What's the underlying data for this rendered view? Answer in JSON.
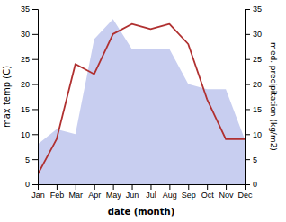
{
  "chart_data": {
    "type": "line",
    "categories": [
      "Jan",
      "Feb",
      "Mar",
      "Apr",
      "May",
      "Jun",
      "Jul",
      "Aug",
      "Sep",
      "Oct",
      "Nov",
      "Dec"
    ],
    "xlabel": "date (month)",
    "ylabel": "max temp (C)",
    "y2label": "med. precipitation (kg/m2)",
    "series": [
      {
        "type": "area",
        "axis": "y2",
        "color": "#c8cef0",
        "values": [
          8,
          11,
          10,
          29,
          33,
          27,
          27,
          27,
          20,
          19,
          19,
          9
        ]
      },
      {
        "type": "line",
        "color": "#b03030",
        "values": [
          2,
          9,
          24,
          22,
          30,
          32,
          31,
          32,
          28,
          17,
          9,
          9
        ]
      }
    ],
    "ylim": [
      0,
      35
    ],
    "yticks": [
      0,
      5,
      10,
      15,
      20,
      25,
      30,
      35
    ],
    "y2lim": [
      0,
      35
    ],
    "y2ticks": [
      0,
      5,
      10,
      15,
      20,
      25,
      30,
      35
    ],
    "grid": false
  }
}
